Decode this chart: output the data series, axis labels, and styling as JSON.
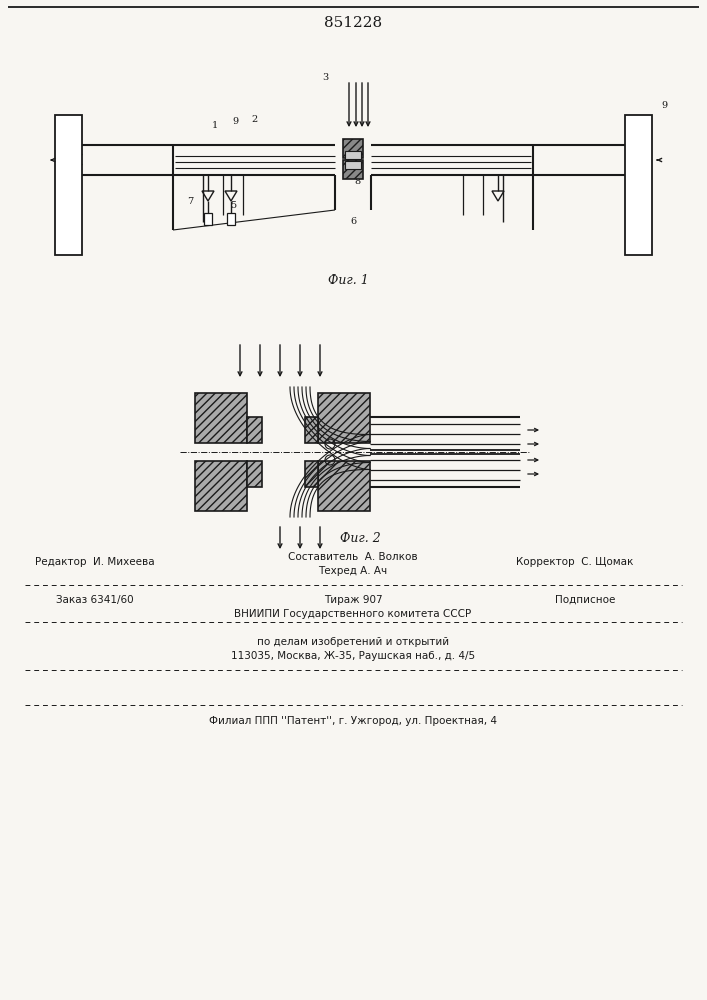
{
  "patent_number": "851228",
  "fig1_label": "Фиг. 1",
  "fig2_label": "Фиг. 2",
  "bg_color": "#f8f6f2",
  "line_color": "#1a1a1a",
  "editor_line": "Редактор  И. Михеева",
  "composer_line": "Составитель  А. Волков",
  "corrector_line": "Корректор  С. Щомак",
  "order_line": "Заказ 6341/60",
  "techred_line": "Техред А. Ач",
  "tirazh_line": "Тираж 907",
  "podpisnoe_line": "Подписное",
  "vniipи_line": "ВНИИПИ Государственного комитета СССР",
  "dela_line": "по делам изобретений и открытий",
  "address_line": "113035, Москва, Ж-35, Раушская наб., д. 4/5",
  "filial_line": "Филиал ППП ''Патент'', г. Ужгород, ул. Проектная, 4"
}
